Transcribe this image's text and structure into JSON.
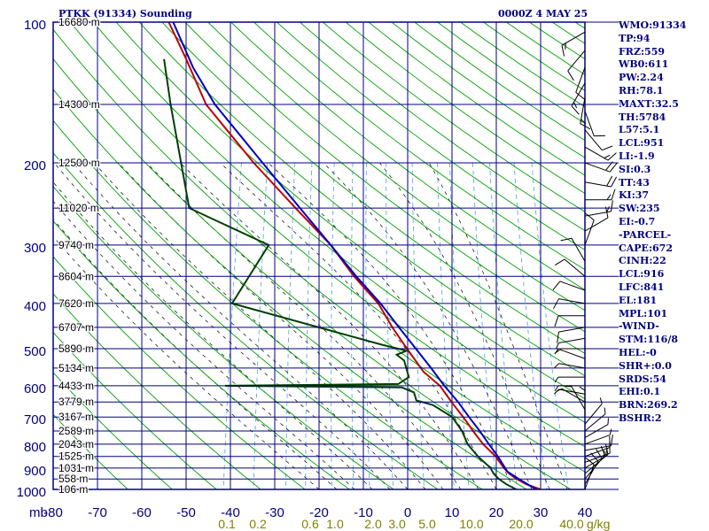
{
  "header": {
    "station_title": "PTKK (91334) Sounding",
    "time_label": "0000Z  4 MAY 25"
  },
  "side_panel": {
    "lines": [
      "WMO:91334",
      "TP:94",
      "FRZ:559",
      "WB0:611",
      "PW:2.24",
      "RH:78.1",
      "MAXT:32.5",
      "TH:5784",
      "L57:5.1",
      "LCL:951",
      "LI:-1.9",
      "SI:0.3",
      "TT:43",
      "KI:37",
      "SW:235",
      "EI:-0.7",
      "-PARCEL-",
      "CAPE:672",
      "CINH:22",
      "LCL:916",
      "LFC:841",
      "EL:181",
      "MPL:101",
      "-WIND-",
      "STM:116/8",
      "HEL:-0",
      "SHR+:0.0",
      "SRDS:54",
      "EHI:0.1",
      "BRN:269.2",
      "BSHR:2"
    ]
  },
  "colors": {
    "background": "#ffffff",
    "axis_text": "#000080",
    "grid": "#000080",
    "isotherm": "#000080",
    "dry_adiabat": "#00a000",
    "moist_adiabat": "#000000",
    "mixing_ratio": "#4aa0e0",
    "mixing_ratio_label": "#808000",
    "temperature": "#c00000",
    "dewpoint": "#004000",
    "parcel": "#0000c0",
    "wind_barb": "#000000"
  },
  "chart_data": {
    "type": "line",
    "title": "PTKK (91334) Sounding",
    "time": "0000Z  4 MAY 25",
    "xlabel": "",
    "ylabel": "mb",
    "pressure_levels": [
      100,
      200,
      300,
      400,
      500,
      600,
      700,
      800,
      900,
      1000
    ],
    "pressure_grid": [
      100,
      150,
      200,
      250,
      300,
      350,
      400,
      450,
      500,
      550,
      600,
      650,
      700,
      750,
      800,
      850,
      900,
      950,
      1000
    ],
    "pressure_tick_labels": [
      "100",
      "200",
      "300",
      "400",
      "500",
      "600",
      "700",
      "800",
      "900",
      "1000"
    ],
    "ylim": [
      100,
      1000
    ],
    "y_scale": "log",
    "temperature_ticks": [
      -80,
      -70,
      -60,
      -50,
      -40,
      -30,
      -20,
      -10,
      0,
      10,
      20,
      30,
      40
    ],
    "xlim": [
      -80,
      40
    ],
    "height_labels": [
      {
        "p": 100,
        "label": "16680 m"
      },
      {
        "p": 150,
        "label": "14300 m"
      },
      {
        "p": 200,
        "label": "12500 m"
      },
      {
        "p": 250,
        "label": "11020 m"
      },
      {
        "p": 300,
        "label": "9740 m"
      },
      {
        "p": 350,
        "label": "8604 m"
      },
      {
        "p": 400,
        "label": "7620 m"
      },
      {
        "p": 450,
        "label": "6707 m"
      },
      {
        "p": 500,
        "label": "5890 m"
      },
      {
        "p": 550,
        "label": "5134 m"
      },
      {
        "p": 600,
        "label": "4433 m"
      },
      {
        "p": 650,
        "label": "3779 m"
      },
      {
        "p": 700,
        "label": "3167 m"
      },
      {
        "p": 750,
        "label": "2589 m"
      },
      {
        "p": 800,
        "label": "2043 m"
      },
      {
        "p": 850,
        "label": "1525 m"
      },
      {
        "p": 900,
        "label": "1031 m"
      },
      {
        "p": 950,
        "label": "558 m"
      },
      {
        "p": 1000,
        "label": "106 m"
      }
    ],
    "mixing_ratio_labels": [
      "0.1",
      "0.2",
      "0.6",
      "1.0",
      "2.0",
      "3.0",
      "5.0",
      "10.0",
      "20.0",
      "40.0"
    ],
    "mixing_ratio_unit": "g/kg",
    "mixing_ratio_lines": [
      0.1,
      0.2,
      0.4,
      0.6,
      1.0,
      1.5,
      2.0,
      3.0,
      5.0,
      8.0,
      10.0,
      15.0,
      20.0,
      30.0,
      40.0
    ],
    "dry_adiabats_theta_K": [
      210,
      220,
      230,
      240,
      250,
      260,
      270,
      280,
      290,
      300,
      310,
      320,
      330,
      340,
      350,
      360,
      370,
      380,
      390,
      400,
      410,
      420,
      430,
      440,
      450,
      460,
      470,
      480,
      490,
      500,
      510,
      520,
      530,
      540,
      550,
      560,
      570,
      580
    ],
    "moist_adiabats_C": [
      -20,
      -16,
      -12,
      -8,
      -4,
      0,
      4,
      8,
      12,
      16,
      20,
      24,
      28,
      32,
      36
    ],
    "series": [
      {
        "name": "temperature",
        "points": [
          {
            "p": 1000,
            "t": 30.0
          },
          {
            "p": 975,
            "t": 26.5
          },
          {
            "p": 950,
            "t": 24.0
          },
          {
            "p": 925,
            "t": 22.0
          },
          {
            "p": 900,
            "t": 20.5
          },
          {
            "p": 850,
            "t": 18.0
          },
          {
            "p": 800,
            "t": 14.5
          },
          {
            "p": 750,
            "t": 11.5
          },
          {
            "p": 700,
            "t": 8.5
          },
          {
            "p": 650,
            "t": 5.0
          },
          {
            "p": 600,
            "t": 1.5
          },
          {
            "p": 560,
            "t": -3.0
          },
          {
            "p": 500,
            "t": -8.0
          },
          {
            "p": 450,
            "t": -12.5
          },
          {
            "p": 400,
            "t": -17.0
          },
          {
            "p": 350,
            "t": -24.0
          },
          {
            "p": 300,
            "t": -31.0
          },
          {
            "p": 250,
            "t": -41.0
          },
          {
            "p": 200,
            "t": -53.0
          },
          {
            "p": 150,
            "t": -67.0
          },
          {
            "p": 120,
            "t": -74.0
          },
          {
            "p": 100,
            "t": -80.0
          }
        ]
      },
      {
        "name": "dewpoint",
        "points": [
          {
            "p": 1000,
            "t": 24.5
          },
          {
            "p": 975,
            "t": 22.0
          },
          {
            "p": 950,
            "t": 20.0
          },
          {
            "p": 925,
            "t": 18.5
          },
          {
            "p": 900,
            "t": 17.5
          },
          {
            "p": 850,
            "t": 14.0
          },
          {
            "p": 800,
            "t": 11.0
          },
          {
            "p": 750,
            "t": 9.0
          },
          {
            "p": 700,
            "t": 6.0
          },
          {
            "p": 660,
            "t": 1.0
          },
          {
            "p": 645,
            "t": -3.0
          },
          {
            "p": 620,
            "t": -4.0
          },
          {
            "p": 605,
            "t": -7.0
          },
          {
            "p": 600,
            "t": -47.0
          },
          {
            "p": 595,
            "t": -8.0
          },
          {
            "p": 575,
            "t": -6.0
          },
          {
            "p": 530,
            "t": -8.0
          },
          {
            "p": 515,
            "t": -10.0
          },
          {
            "p": 505,
            "t": -8.0
          },
          {
            "p": 490,
            "t": -14.0
          },
          {
            "p": 400,
            "t": -50.0
          },
          {
            "p": 300,
            "t": -45.0
          },
          {
            "p": 250,
            "t": -65.0
          },
          {
            "p": 150,
            "t": -75.0
          },
          {
            "p": 120,
            "t": -79.0
          }
        ]
      },
      {
        "name": "parcel",
        "points": [
          {
            "p": 1000,
            "t": 29.0
          },
          {
            "p": 950,
            "t": 24.5
          },
          {
            "p": 916,
            "t": 21.5
          },
          {
            "p": 900,
            "t": 20.8
          },
          {
            "p": 850,
            "t": 18.5
          },
          {
            "p": 800,
            "t": 15.8
          },
          {
            "p": 750,
            "t": 13.0
          },
          {
            "p": 700,
            "t": 9.8
          },
          {
            "p": 650,
            "t": 6.5
          },
          {
            "p": 600,
            "t": 2.5
          },
          {
            "p": 550,
            "t": -1.5
          },
          {
            "p": 500,
            "t": -6.0
          },
          {
            "p": 450,
            "t": -11.0
          },
          {
            "p": 400,
            "t": -16.5
          },
          {
            "p": 350,
            "t": -23.5
          },
          {
            "p": 300,
            "t": -31.0
          },
          {
            "p": 250,
            "t": -40.0
          },
          {
            "p": 200,
            "t": -51.0
          },
          {
            "p": 150,
            "t": -65.0
          },
          {
            "p": 125,
            "t": -72.0
          },
          {
            "p": 110,
            "t": -76.0
          },
          {
            "p": 100,
            "t": -79.0
          }
        ]
      }
    ],
    "wind_profile": [
      {
        "p": 1000,
        "dir": 200,
        "spd": 10
      },
      {
        "p": 975,
        "dir": 210,
        "spd": 10
      },
      {
        "p": 950,
        "dir": 220,
        "spd": 10
      },
      {
        "p": 925,
        "dir": 230,
        "spd": 10
      },
      {
        "p": 900,
        "dir": 240,
        "spd": 15
      },
      {
        "p": 875,
        "dir": 250,
        "spd": 15
      },
      {
        "p": 850,
        "dir": 250,
        "spd": 10
      },
      {
        "p": 825,
        "dir": 260,
        "spd": 10
      },
      {
        "p": 800,
        "dir": 250,
        "spd": 5
      },
      {
        "p": 775,
        "dir": 240,
        "spd": 5
      },
      {
        "p": 750,
        "dir": 230,
        "spd": 5
      },
      {
        "p": 725,
        "dir": 220,
        "spd": 5
      },
      {
        "p": 700,
        "dir": 180,
        "spd": 5
      },
      {
        "p": 675,
        "dir": 150,
        "spd": 5
      },
      {
        "p": 650,
        "dir": 120,
        "spd": 5
      },
      {
        "p": 625,
        "dir": 100,
        "spd": 5
      },
      {
        "p": 600,
        "dir": 90,
        "spd": 5
      },
      {
        "p": 575,
        "dir": 90,
        "spd": 5
      },
      {
        "p": 550,
        "dir": 100,
        "spd": 5
      },
      {
        "p": 525,
        "dir": 110,
        "spd": 5
      },
      {
        "p": 500,
        "dir": 90,
        "spd": 5
      },
      {
        "p": 475,
        "dir": 80,
        "spd": 5
      },
      {
        "p": 450,
        "dir": 80,
        "spd": 10
      },
      {
        "p": 425,
        "dir": 90,
        "spd": 10
      },
      {
        "p": 400,
        "dir": 100,
        "spd": 10
      },
      {
        "p": 375,
        "dir": 110,
        "spd": 10
      },
      {
        "p": 350,
        "dir": 130,
        "spd": 10
      },
      {
        "p": 325,
        "dir": 150,
        "spd": 10
      },
      {
        "p": 300,
        "dir": 200,
        "spd": 10
      },
      {
        "p": 280,
        "dir": 240,
        "spd": 10
      },
      {
        "p": 260,
        "dir": 260,
        "spd": 15
      },
      {
        "p": 240,
        "dir": 270,
        "spd": 15
      },
      {
        "p": 220,
        "dir": 280,
        "spd": 20
      },
      {
        "p": 200,
        "dir": 290,
        "spd": 20
      },
      {
        "p": 185,
        "dir": 300,
        "spd": 15
      },
      {
        "p": 170,
        "dir": 320,
        "spd": 10
      },
      {
        "p": 155,
        "dir": 340,
        "spd": 10
      },
      {
        "p": 145,
        "dir": 10,
        "spd": 15
      },
      {
        "p": 135,
        "dir": 30,
        "spd": 15
      },
      {
        "p": 125,
        "dir": 20,
        "spd": 10
      },
      {
        "p": 115,
        "dir": 40,
        "spd": 10
      },
      {
        "p": 105,
        "dir": 60,
        "spd": 15
      }
    ]
  }
}
